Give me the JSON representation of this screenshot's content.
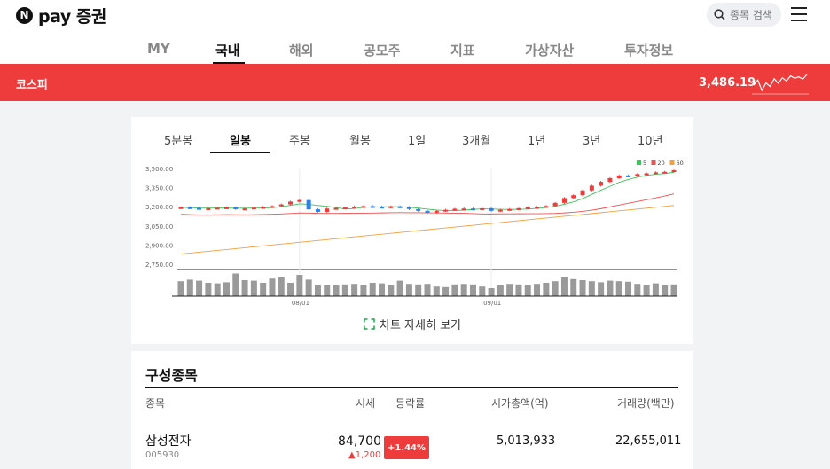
{
  "header": {
    "logo_letter": "N",
    "logo_text": "pay 증권",
    "search_placeholder": "종목 검색",
    "nav": [
      {
        "label": "MY"
      },
      {
        "label": "국내"
      },
      {
        "label": "해외"
      },
      {
        "label": "공모주"
      },
      {
        "label": "지표"
      },
      {
        "label": "가상자산"
      },
      {
        "label": "투자정보"
      }
    ],
    "active_nav": "국내"
  },
  "index_bar": {
    "name": "코스피",
    "value": "3,486.19",
    "spark_values": [
      3440,
      3462,
      3418,
      3450,
      3435,
      3468,
      3448,
      3472,
      3458,
      3480,
      3470,
      3476,
      3466,
      3486
    ]
  },
  "chart_panel": {
    "periods": [
      {
        "label": "5분봉"
      },
      {
        "label": "일봉"
      },
      {
        "label": "주봉"
      },
      {
        "label": "월봉"
      },
      {
        "label": "1일"
      },
      {
        "label": "3개월"
      },
      {
        "label": "1년"
      },
      {
        "label": "3년"
      },
      {
        "label": "10년"
      }
    ],
    "active_period": "일봉",
    "detail_link": "차트 자세히 보기"
  },
  "chart_data": {
    "type": "candlestick",
    "y_ticks": [
      "3,500.00",
      "3,350.00",
      "3,200.00",
      "3,050.00",
      "2,900.00",
      "2,750.00"
    ],
    "ylim": [
      2750,
      3500
    ],
    "x_ticks": [
      {
        "label": "08/01",
        "index": 13
      },
      {
        "label": "09/01",
        "index": 34
      }
    ],
    "legend": [
      "5",
      "20",
      "60"
    ],
    "colors": {
      "up": "#ee3b3b",
      "down": "#2f7fe6",
      "ma5": "#3cc45a",
      "ma20": "#ee5050",
      "ma60": "#f0a040",
      "volume": "#9a9a9a"
    },
    "closes": [
      3196,
      3190,
      3185,
      3188,
      3192,
      3195,
      3182,
      3186,
      3193,
      3198,
      3205,
      3218,
      3240,
      3252,
      3180,
      3160,
      3186,
      3190,
      3194,
      3202,
      3205,
      3200,
      3196,
      3203,
      3198,
      3182,
      3168,
      3154,
      3168,
      3176,
      3184,
      3186,
      3184,
      3188,
      3168,
      3176,
      3182,
      3188,
      3196,
      3198,
      3206,
      3230,
      3268,
      3290,
      3328,
      3365,
      3395,
      3424,
      3445,
      3440,
      3456,
      3462,
      3470,
      3474,
      3486
    ],
    "volumes": [
      0.56,
      0.62,
      0.58,
      0.5,
      0.48,
      0.52,
      0.85,
      0.6,
      0.58,
      0.5,
      0.66,
      0.72,
      0.5,
      0.8,
      0.62,
      0.4,
      0.42,
      0.4,
      0.44,
      0.46,
      0.42,
      0.5,
      0.48,
      0.4,
      0.58,
      0.46,
      0.44,
      0.46,
      0.36,
      0.34,
      0.44,
      0.46,
      0.44,
      0.36,
      0.3,
      0.42,
      0.46,
      0.44,
      0.4,
      0.46,
      0.5,
      0.56,
      0.7,
      0.64,
      0.6,
      0.56,
      0.52,
      0.58,
      0.56,
      0.54,
      0.46,
      0.42,
      0.48,
      0.4,
      0.44
    ]
  },
  "constituents": {
    "title": "구성종목",
    "headers": {
      "name": "종목",
      "price": "시세",
      "change_rate": "등락률",
      "market_cap": "시가총액(억)",
      "volume": "거래량(백만)"
    },
    "rows": [
      {
        "name": "삼성전자",
        "code": "005930",
        "price": "84,700",
        "change": "1,200",
        "change_rate": "+1.44%",
        "market_cap": "5,013,933",
        "volume": "22,655,011"
      }
    ]
  }
}
